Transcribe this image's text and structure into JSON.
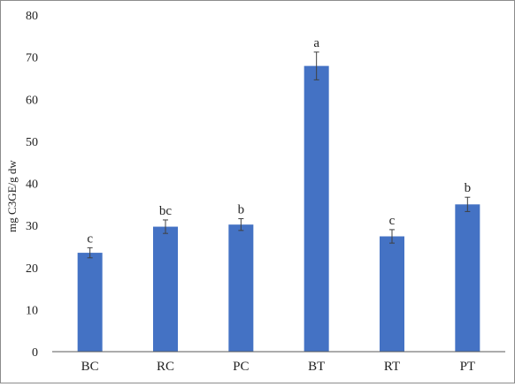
{
  "chart_data": {
    "type": "bar",
    "title": "",
    "xlabel": "",
    "ylabel": "mg C3GE/g dw",
    "ylim": [
      0,
      80
    ],
    "yticks": [
      0,
      10,
      20,
      30,
      40,
      50,
      60,
      70,
      80
    ],
    "grid": false,
    "categories": [
      "BC",
      "RC",
      "PC",
      "BT",
      "RT",
      "PT"
    ],
    "values": [
      23.5,
      29.7,
      30.2,
      67.9,
      27.4,
      35.0
    ],
    "errors": [
      1.2,
      1.6,
      1.4,
      3.3,
      1.6,
      1.7
    ],
    "significance": [
      "c",
      "bc",
      "b",
      "a",
      "c",
      "b"
    ],
    "bar_color": "#4472c4",
    "error_color": "#404040",
    "axis_color": "#595959"
  }
}
